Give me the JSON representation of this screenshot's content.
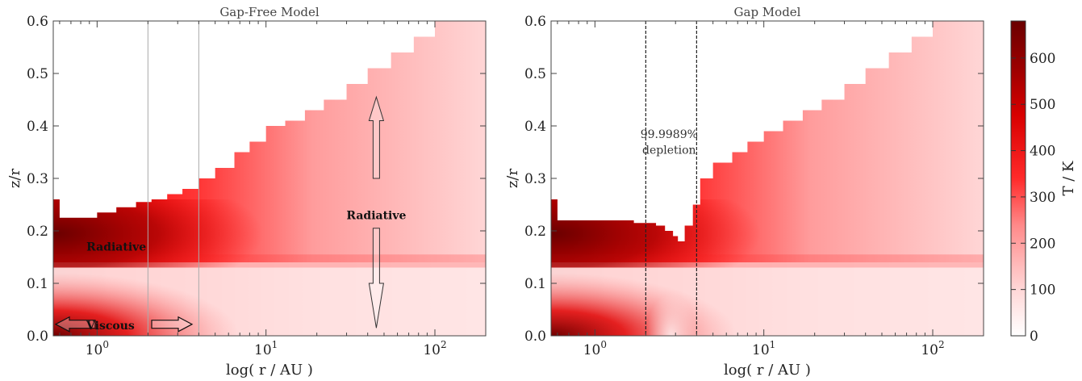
{
  "chart_data": [
    {
      "type": "heatmap",
      "title": "Gap-Free Model",
      "xlabel": "log( r / AU )",
      "ylabel": "z/r",
      "x_scale": "log",
      "xlim": [
        0.55,
        200
      ],
      "ylim": [
        0.0,
        0.6
      ],
      "x_ticks": [
        1,
        10,
        100
      ],
      "x_tick_labels": [
        "10^0",
        "10^1",
        "10^2"
      ],
      "y_ticks": [
        0.0,
        0.1,
        0.2,
        0.3,
        0.4,
        0.5,
        0.6
      ],
      "y_tick_labels": [
        "0.0",
        "0.1",
        "0.2",
        "0.3",
        "0.4",
        "0.5",
        "0.6"
      ],
      "surface_boundary": {
        "r_au": [
          0.55,
          0.6,
          0.7,
          1.0,
          1.3,
          1.7,
          2.1,
          2.6,
          3.2,
          4.0,
          5.0,
          6.5,
          8.0,
          10,
          13,
          17,
          22,
          30,
          40,
          55,
          75,
          100,
          140,
          200
        ],
        "z_over_r": [
          0.26,
          0.225,
          0.225,
          0.235,
          0.245,
          0.255,
          0.26,
          0.27,
          0.28,
          0.3,
          0.32,
          0.35,
          0.37,
          0.4,
          0.41,
          0.43,
          0.45,
          0.48,
          0.51,
          0.54,
          0.57,
          0.6,
          0.6,
          0.6
        ]
      },
      "vertical_lines_r_au": [
        2.0,
        4.0
      ],
      "annotations": [
        {
          "text": "Radiative",
          "r_au": 1.3,
          "z_over_r": 0.17
        },
        {
          "text": "Radiative",
          "r_au": 45,
          "z_over_r": 0.23
        },
        {
          "text": "Viscous",
          "r_au": 1.2,
          "z_over_r": 0.02
        }
      ]
    },
    {
      "type": "heatmap",
      "title": "Gap Model",
      "xlabel": "log( r / AU )",
      "ylabel": "z/r",
      "x_scale": "log",
      "xlim": [
        0.55,
        200
      ],
      "ylim": [
        0.0,
        0.6
      ],
      "x_ticks": [
        1,
        10,
        100
      ],
      "x_tick_labels": [
        "10^0",
        "10^1",
        "10^2"
      ],
      "y_ticks": [
        0.0,
        0.1,
        0.2,
        0.3,
        0.4,
        0.5,
        0.6
      ],
      "y_tick_labels": [
        "0.0",
        "0.1",
        "0.2",
        "0.3",
        "0.4",
        "0.5",
        "0.6"
      ],
      "surface_boundary": {
        "r_au": [
          0.55,
          0.6,
          0.7,
          1.0,
          1.3,
          1.7,
          2.0,
          2.3,
          2.6,
          2.9,
          3.1,
          3.4,
          3.8,
          4.2,
          5.0,
          6.5,
          8.0,
          10,
          13,
          17,
          22,
          30,
          40,
          55,
          75,
          100,
          140,
          200
        ],
        "z_over_r": [
          0.26,
          0.22,
          0.22,
          0.22,
          0.22,
          0.215,
          0.215,
          0.21,
          0.2,
          0.19,
          0.18,
          0.21,
          0.25,
          0.3,
          0.33,
          0.35,
          0.37,
          0.39,
          0.41,
          0.43,
          0.45,
          0.48,
          0.51,
          0.54,
          0.57,
          0.6,
          0.6,
          0.6
        ]
      },
      "vertical_lines_r_au": [
        2.0,
        4.0
      ],
      "annotations": [
        {
          "text": "99.9989%",
          "r_au": 2.75,
          "z_over_r": 0.385
        },
        {
          "text": "depletion",
          "r_au": 2.75,
          "z_over_r": 0.355
        }
      ]
    }
  ],
  "colorbar": {
    "label": "T / K",
    "range": [
      0,
      680
    ],
    "ticks": [
      "0",
      "100",
      "200",
      "300",
      "400",
      "500",
      "600"
    ],
    "colors": [
      "#ffffff",
      "#ffd0d0",
      "#ff8080",
      "#ff2020",
      "#e00000",
      "#a00000",
      "#6a0000"
    ]
  }
}
